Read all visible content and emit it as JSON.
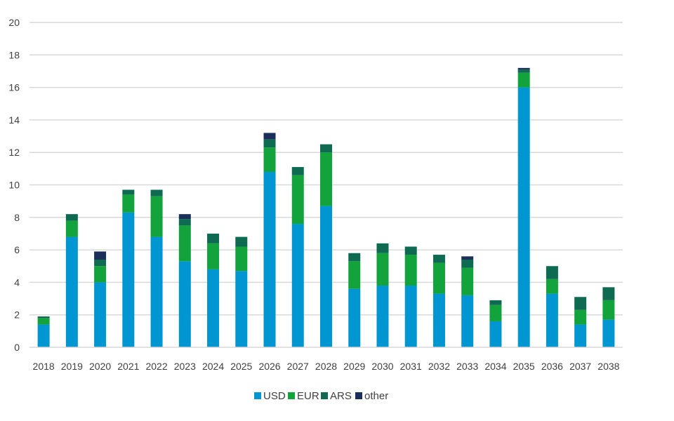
{
  "chart_data": {
    "type": "bar",
    "stacked": true,
    "categories": [
      "2018",
      "2019",
      "2020",
      "2021",
      "2022",
      "2023",
      "2024",
      "2025",
      "2026",
      "2027",
      "2028",
      "2029",
      "2030",
      "2031",
      "2032",
      "2033",
      "2034",
      "2035",
      "2036",
      "2037",
      "2038"
    ],
    "series": [
      {
        "name": "USD",
        "color": "#0096D1",
        "values": [
          1.4,
          6.8,
          4.0,
          8.3,
          6.8,
          5.3,
          4.8,
          4.7,
          10.8,
          7.6,
          8.7,
          3.6,
          3.8,
          3.8,
          3.3,
          3.2,
          1.6,
          16.0,
          3.3,
          1.4,
          1.7
        ]
      },
      {
        "name": "EUR",
        "color": "#12A33C",
        "values": [
          0.4,
          1.0,
          1.0,
          1.1,
          2.5,
          2.2,
          1.6,
          1.5,
          1.5,
          3.0,
          3.3,
          1.7,
          2.0,
          1.9,
          1.9,
          1.7,
          1.0,
          0.9,
          0.9,
          0.9,
          1.2
        ]
      },
      {
        "name": "ARS",
        "color": "#0E6B52",
        "values": [
          0.1,
          0.4,
          0.4,
          0.3,
          0.4,
          0.4,
          0.6,
          0.6,
          0.5,
          0.5,
          0.5,
          0.5,
          0.6,
          0.5,
          0.5,
          0.5,
          0.3,
          0.2,
          0.8,
          0.8,
          0.8
        ]
      },
      {
        "name": "other",
        "color": "#1B2F5A",
        "values": [
          0.0,
          0.0,
          0.5,
          0.0,
          0.0,
          0.3,
          0.0,
          0.0,
          0.4,
          0.0,
          0.0,
          0.0,
          0.0,
          0.0,
          0.0,
          0.2,
          0.0,
          0.1,
          0.0,
          0.0,
          0.0
        ]
      }
    ],
    "ylim": [
      0,
      20
    ],
    "yticks": [
      "0",
      "2",
      "4",
      "6",
      "8",
      "10",
      "12",
      "14",
      "16",
      "18",
      "20"
    ],
    "grid": true,
    "legend_position": "bottom-center",
    "title": "",
    "xlabel": "",
    "ylabel": ""
  }
}
